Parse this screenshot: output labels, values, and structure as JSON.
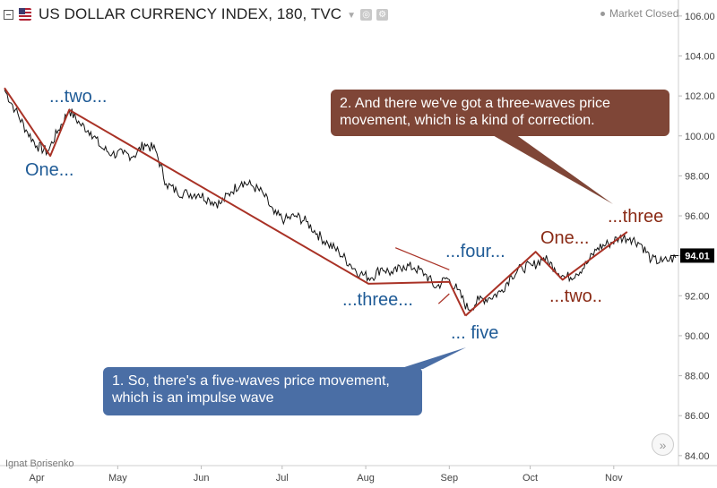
{
  "header": {
    "title": "US DOLLAR CURRENCY INDEX, 180, TVC",
    "status": "Market Closed",
    "icons": [
      "collapse-icon",
      "us-flag-icon",
      "chevron-down-icon",
      "settings-icon",
      "gear-icon"
    ]
  },
  "author": "Ignat Borisenko",
  "callouts": {
    "impulse": "1. So, there's a five-waves price movement, which is an impulse wave",
    "correction": "2. And there we've got a three-waves price movement, which is a kind of correction."
  },
  "wave_labels": {
    "one": "One...",
    "two": "...two...",
    "three": "...three...",
    "four": "...four...",
    "five": "... five",
    "c_one": "One...",
    "c_two": "...two..",
    "c_three": "...three"
  },
  "colors": {
    "impulse_label": "#1f5b96",
    "correction_label": "#8a2b16",
    "wave_line": "#a93226",
    "impulse_callout": "#4a6ea5",
    "correction_callout": "#7f4637",
    "price_line": "#111111",
    "last_price_badge": "#000000"
  },
  "chart_data": {
    "type": "line",
    "title": "US DOLLAR CURRENCY INDEX, 180, TVC",
    "x_range": [
      "2017-03-20",
      "2017-11-25"
    ],
    "ylim": [
      83.5,
      106.8
    ],
    "y_ticks": [
      84.0,
      86.0,
      88.0,
      90.0,
      92.0,
      94.0,
      96.0,
      98.0,
      100.0,
      102.0,
      104.0,
      106.0
    ],
    "y_tick_labels": [
      "84.00",
      "86.00",
      "88.00",
      "90.00",
      "92.00",
      "94.00",
      "96.00",
      "98.00",
      "100.00",
      "102.00",
      "104.00",
      "106.00"
    ],
    "x_ticks": [
      {
        "date": "2017-04-01",
        "label": "Apr"
      },
      {
        "date": "2017-05-01",
        "label": "May"
      },
      {
        "date": "2017-06-01",
        "label": "Jun"
      },
      {
        "date": "2017-07-01",
        "label": "Jul"
      },
      {
        "date": "2017-08-01",
        "label": "Aug"
      },
      {
        "date": "2017-09-01",
        "label": "Sep"
      },
      {
        "date": "2017-10-01",
        "label": "Oct"
      },
      {
        "date": "2017-11-01",
        "label": "Nov"
      }
    ],
    "last_price": 94.01,
    "last_price_label": "94.01",
    "grid": false,
    "series": [
      {
        "points": [
          [
            "2017-03-20",
            102.3
          ],
          [
            "2017-03-24",
            101.3
          ],
          [
            "2017-03-28",
            100.3
          ],
          [
            "2017-04-01",
            99.5
          ],
          [
            "2017-04-05",
            99.2
          ],
          [
            "2017-04-09",
            100.3
          ],
          [
            "2017-04-13",
            101.3
          ],
          [
            "2017-04-17",
            100.6
          ],
          [
            "2017-04-21",
            100.2
          ],
          [
            "2017-04-25",
            99.4
          ],
          [
            "2017-04-29",
            99.1
          ],
          [
            "2017-05-03",
            99.1
          ],
          [
            "2017-05-07",
            99.0
          ],
          [
            "2017-05-11",
            99.6
          ],
          [
            "2017-05-15",
            99.3
          ],
          [
            "2017-05-19",
            97.6
          ],
          [
            "2017-05-23",
            97.2
          ],
          [
            "2017-05-27",
            97.1
          ],
          [
            "2017-05-31",
            97.1
          ],
          [
            "2017-06-04",
            96.8
          ],
          [
            "2017-06-08",
            96.6
          ],
          [
            "2017-06-12",
            97.2
          ],
          [
            "2017-06-16",
            97.7
          ],
          [
            "2017-06-20",
            97.5
          ],
          [
            "2017-06-24",
            97.1
          ],
          [
            "2017-06-28",
            96.1
          ],
          [
            "2017-07-02",
            95.8
          ],
          [
            "2017-07-06",
            96.0
          ],
          [
            "2017-07-10",
            95.7
          ],
          [
            "2017-07-14",
            95.1
          ],
          [
            "2017-07-18",
            94.6
          ],
          [
            "2017-07-22",
            94.2
          ],
          [
            "2017-07-26",
            93.6
          ],
          [
            "2017-07-30",
            93.1
          ],
          [
            "2017-08-03",
            92.9
          ],
          [
            "2017-08-07",
            93.4
          ],
          [
            "2017-08-11",
            93.1
          ],
          [
            "2017-08-15",
            93.5
          ],
          [
            "2017-08-19",
            93.4
          ],
          [
            "2017-08-23",
            93.1
          ],
          [
            "2017-08-27",
            92.4
          ],
          [
            "2017-08-31",
            92.9
          ],
          [
            "2017-09-04",
            92.3
          ],
          [
            "2017-09-08",
            91.3
          ],
          [
            "2017-09-12",
            91.8
          ],
          [
            "2017-09-16",
            91.9
          ],
          [
            "2017-09-20",
            92.2
          ],
          [
            "2017-09-24",
            93.0
          ],
          [
            "2017-09-28",
            93.4
          ],
          [
            "2017-10-02",
            93.5
          ],
          [
            "2017-10-06",
            93.9
          ],
          [
            "2017-10-10",
            93.4
          ],
          [
            "2017-10-14",
            92.9
          ],
          [
            "2017-10-18",
            93.1
          ],
          [
            "2017-10-22",
            93.6
          ],
          [
            "2017-10-26",
            94.4
          ],
          [
            "2017-10-30",
            94.6
          ],
          [
            "2017-11-03",
            94.9
          ],
          [
            "2017-11-07",
            94.9
          ],
          [
            "2017-11-11",
            94.6
          ],
          [
            "2017-11-15",
            93.8
          ],
          [
            "2017-11-19",
            93.7
          ],
          [
            "2017-11-24",
            93.9
          ]
        ]
      }
    ],
    "impulse_wave": [
      [
        "2017-03-20",
        102.4
      ],
      [
        "2017-04-06",
        99.0
      ],
      [
        "2017-04-13",
        101.3
      ],
      [
        "2017-08-02",
        92.6
      ],
      [
        "2017-09-01",
        92.7
      ],
      [
        "2017-09-07",
        91.0
      ]
    ],
    "correction_wave": [
      [
        "2017-09-07",
        91.0
      ],
      [
        "2017-10-03",
        94.2
      ],
      [
        "2017-10-13",
        92.8
      ],
      [
        "2017-11-06",
        95.2
      ]
    ],
    "wedge": {
      "upper": [
        [
          "2017-08-12",
          94.4
        ],
        [
          "2017-09-01",
          93.3
        ]
      ],
      "lower": [
        [
          "2017-08-28",
          91.6
        ],
        [
          "2017-09-01",
          92.1
        ]
      ]
    }
  }
}
